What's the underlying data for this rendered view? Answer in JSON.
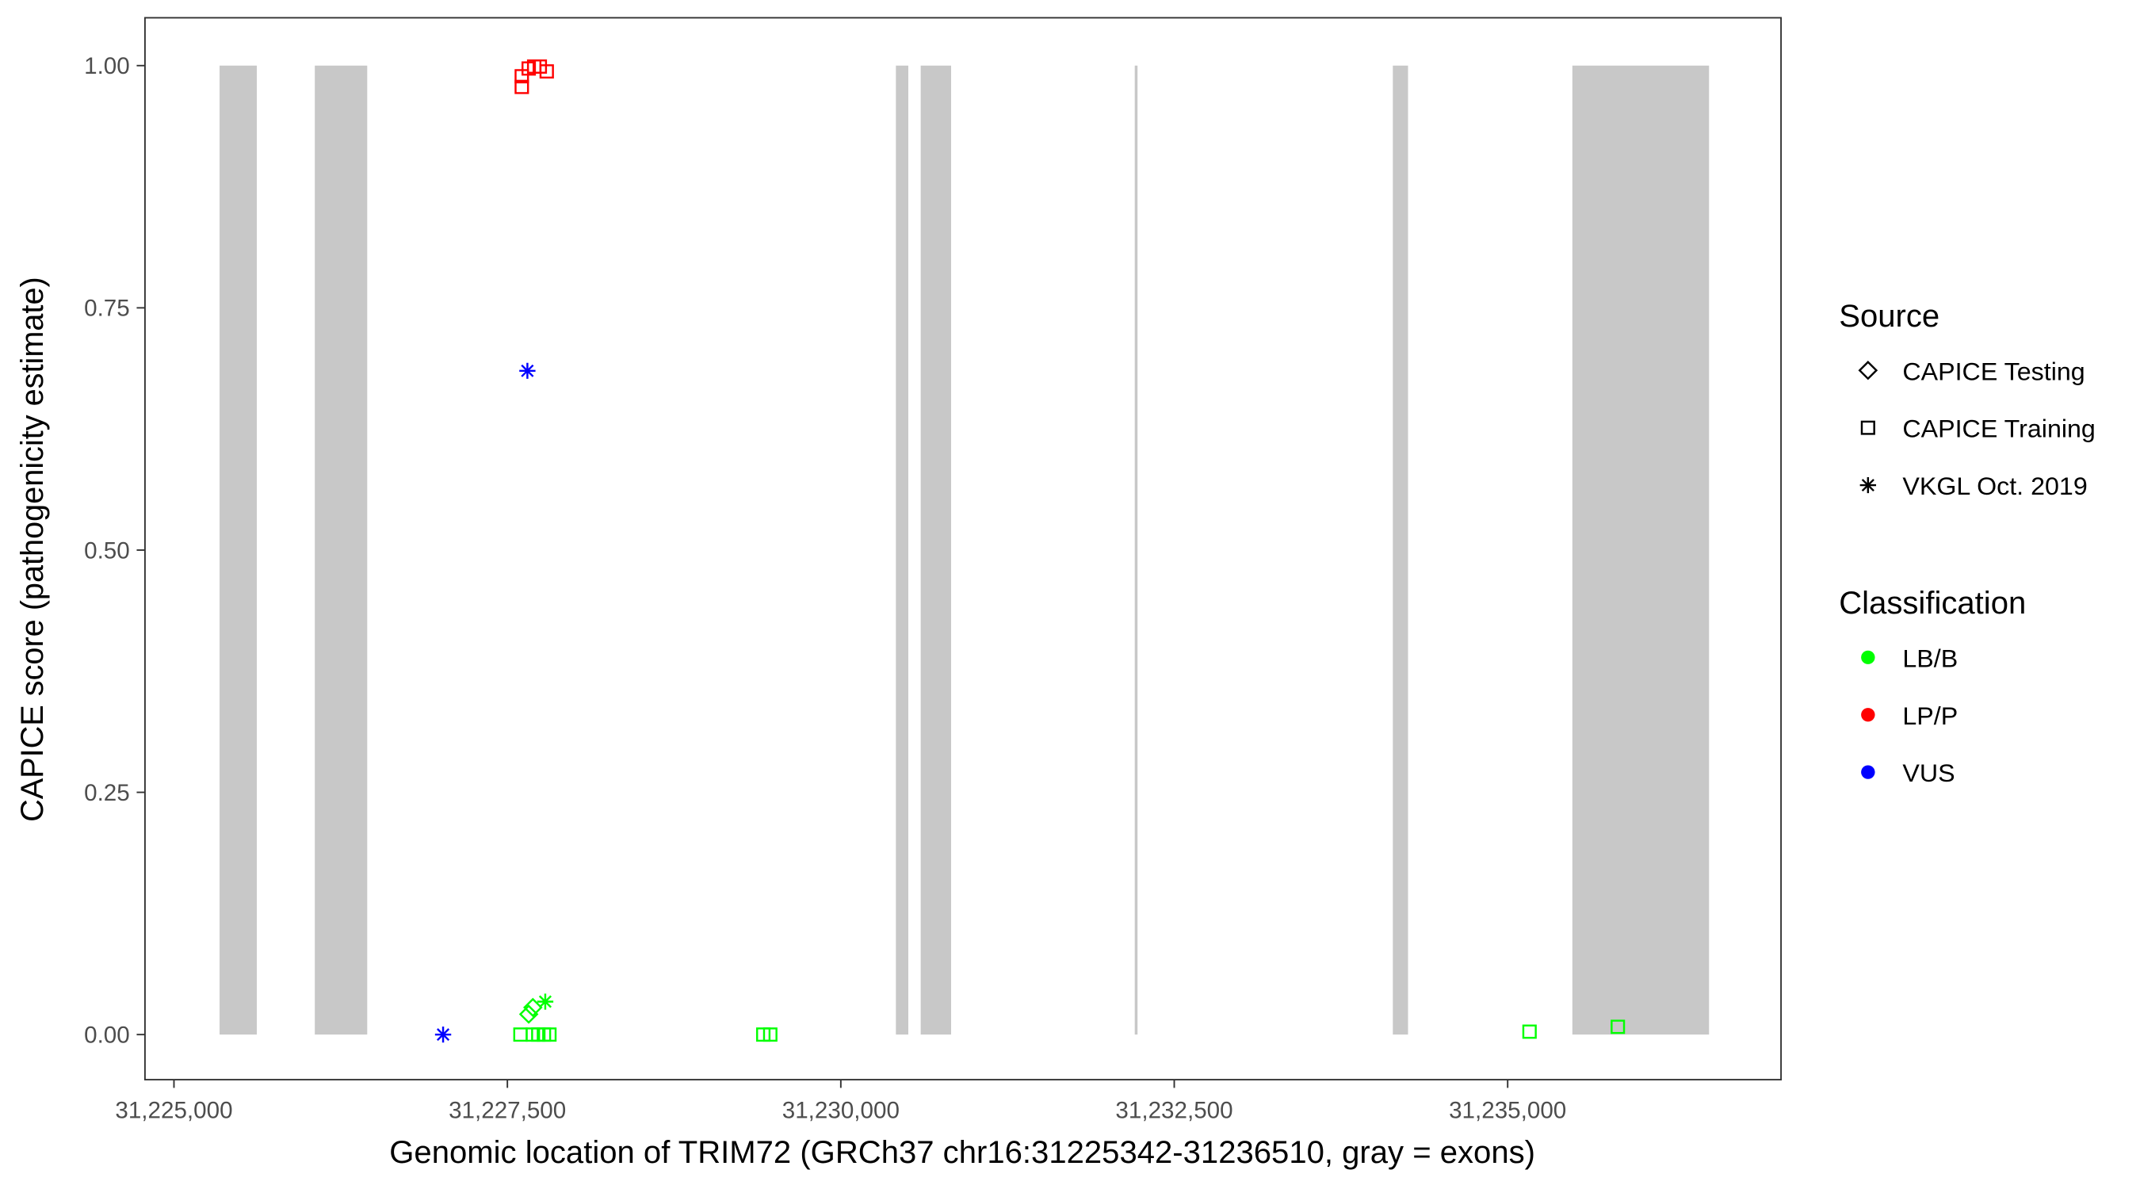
{
  "chart_data": {
    "type": "scatter",
    "xlabel": "Genomic location of TRIM72 (GRCh37 chr16:31225342-31236510, gray = exons)",
    "ylabel": "CAPICE score (pathogenicity estimate)",
    "xlim": [
      31224800,
      31237100
    ],
    "ylim": [
      -0.045,
      1.048
    ],
    "xticks": [
      31225000,
      31227500,
      31230000,
      31232500,
      31235000
    ],
    "xtick_labels": [
      "31,225,000",
      "31,227,500",
      "31,230,000",
      "31,232,500",
      "31,235,000"
    ],
    "yticks": [
      0,
      0.25,
      0.5,
      0.75,
      1.0
    ],
    "ytick_labels": [
      "0.00",
      "0.25",
      "0.50",
      "0.75",
      "1.00"
    ],
    "grid": false,
    "legend_placement": "right",
    "exons": [
      [
        31225342,
        31225621
      ],
      [
        31226056,
        31226449
      ],
      [
        31230413,
        31230506
      ],
      [
        31230599,
        31230827
      ],
      [
        31232204,
        31232224
      ],
      [
        31234139,
        31234253
      ],
      [
        31235485,
        31236510
      ]
    ],
    "exon_color": "#c8c8c8",
    "legend": {
      "source_title": "Source",
      "sources": [
        {
          "label": "CAPICE Testing",
          "shape": "diamond"
        },
        {
          "label": "CAPICE Training",
          "shape": "square"
        },
        {
          "label": "VKGL Oct. 2019",
          "shape": "asterisk"
        }
      ],
      "class_title": "Classification",
      "classes": [
        {
          "label": "LB/B",
          "color": "#00ff00"
        },
        {
          "label": "LP/P",
          "color": "#ff0000"
        },
        {
          "label": "VUS",
          "color": "#0000ff"
        }
      ]
    },
    "points": [
      {
        "x": 31227608,
        "y": 0.978,
        "source": "square",
        "class": "LP/P"
      },
      {
        "x": 31227608,
        "y": 0.989,
        "source": "square",
        "class": "LP/P"
      },
      {
        "x": 31227660,
        "y": 0.997,
        "source": "square",
        "class": "LP/P"
      },
      {
        "x": 31227701,
        "y": 0.999,
        "source": "square",
        "class": "LP/P"
      },
      {
        "x": 31227743,
        "y": 0.999,
        "source": "square",
        "class": "LP/P"
      },
      {
        "x": 31227795,
        "y": 0.994,
        "source": "square",
        "class": "LP/P"
      },
      {
        "x": 31227650,
        "y": 0.685,
        "source": "asterisk",
        "class": "VUS"
      },
      {
        "x": 31227018,
        "y": 0.0,
        "source": "asterisk",
        "class": "VUS"
      },
      {
        "x": 31227660,
        "y": 0.021,
        "source": "diamond",
        "class": "LB/B"
      },
      {
        "x": 31227691,
        "y": 0.028,
        "source": "diamond",
        "class": "LB/B"
      },
      {
        "x": 31227784,
        "y": 0.034,
        "source": "asterisk",
        "class": "LB/B"
      },
      {
        "x": 31227598,
        "y": 0.0,
        "source": "square",
        "class": "LB/B"
      },
      {
        "x": 31227691,
        "y": 0.0,
        "source": "square",
        "class": "LB/B"
      },
      {
        "x": 31227732,
        "y": 0.0,
        "source": "square",
        "class": "LB/B"
      },
      {
        "x": 31227774,
        "y": 0.0,
        "source": "square",
        "class": "LB/B"
      },
      {
        "x": 31227815,
        "y": 0.0,
        "source": "square",
        "class": "LB/B"
      },
      {
        "x": 31229419,
        "y": 0.0,
        "source": "square",
        "class": "LB/B"
      },
      {
        "x": 31229471,
        "y": 0.0,
        "source": "square",
        "class": "LB/B"
      },
      {
        "x": 31235164,
        "y": 0.003,
        "source": "square",
        "class": "LB/B"
      },
      {
        "x": 31235826,
        "y": 0.008,
        "source": "square",
        "class": "LB/B"
      }
    ]
  }
}
